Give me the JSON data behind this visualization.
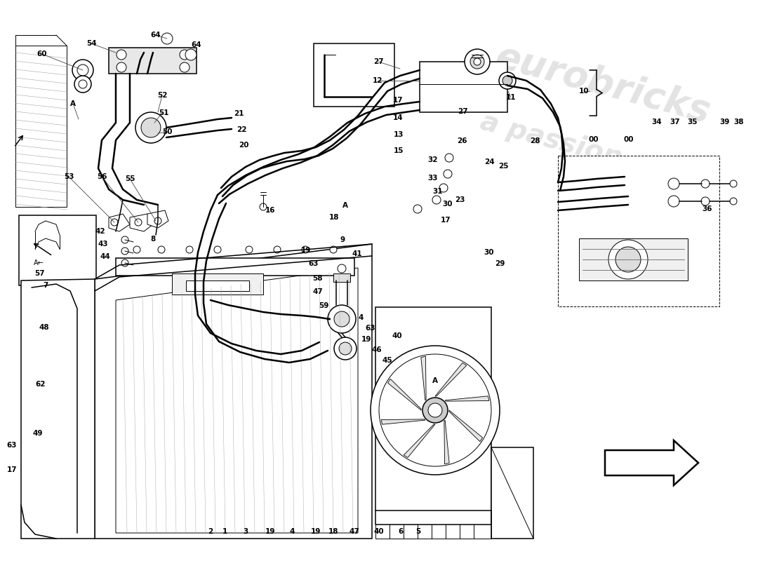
{
  "bg_color": "#ffffff",
  "line_color": "#000000",
  "lw_thin": 0.7,
  "lw_med": 1.1,
  "lw_thick": 1.8,
  "label_fontsize": 7.5,
  "watermark": {
    "text1": "eurob",
    "text2": "a pas",
    "text3": "sion",
    "color": "#d4c870",
    "alpha": 0.3
  },
  "figsize": [
    11.0,
    8.0
  ],
  "dpi": 100,
  "labels": [
    [
      60,
      77,
      "60"
    ],
    [
      130,
      62,
      "54"
    ],
    [
      222,
      50,
      "64"
    ],
    [
      280,
      64,
      "64"
    ],
    [
      104,
      148,
      "A"
    ],
    [
      231,
      136,
      "52"
    ],
    [
      233,
      161,
      "51"
    ],
    [
      238,
      188,
      "50"
    ],
    [
      98,
      252,
      "53"
    ],
    [
      145,
      252,
      "56"
    ],
    [
      185,
      255,
      "55"
    ],
    [
      143,
      330,
      "42"
    ],
    [
      147,
      348,
      "43"
    ],
    [
      150,
      366,
      "44"
    ],
    [
      218,
      341,
      "8"
    ],
    [
      65,
      407,
      "7"
    ],
    [
      63,
      467,
      "48"
    ],
    [
      58,
      548,
      "62"
    ],
    [
      54,
      618,
      "49"
    ],
    [
      340,
      162,
      "21"
    ],
    [
      344,
      185,
      "22"
    ],
    [
      347,
      207,
      "20"
    ],
    [
      385,
      300,
      "16"
    ],
    [
      436,
      357,
      "19"
    ],
    [
      447,
      376,
      "63"
    ],
    [
      452,
      397,
      "58"
    ],
    [
      453,
      416,
      "47"
    ],
    [
      461,
      436,
      "59"
    ],
    [
      476,
      310,
      "18"
    ],
    [
      492,
      293,
      "A"
    ],
    [
      488,
      342,
      "9"
    ],
    [
      509,
      362,
      "41"
    ],
    [
      514,
      453,
      "4"
    ],
    [
      528,
      468,
      "63"
    ],
    [
      522,
      484,
      "19"
    ],
    [
      537,
      499,
      "46"
    ],
    [
      552,
      514,
      "45"
    ],
    [
      566,
      479,
      "40"
    ],
    [
      539,
      88,
      "27"
    ],
    [
      538,
      115,
      "12"
    ],
    [
      567,
      143,
      "17"
    ],
    [
      567,
      168,
      "14"
    ],
    [
      568,
      192,
      "13"
    ],
    [
      568,
      215,
      "15"
    ],
    [
      617,
      228,
      "32"
    ],
    [
      617,
      254,
      "33"
    ],
    [
      624,
      273,
      "31"
    ],
    [
      638,
      291,
      "30"
    ],
    [
      658,
      201,
      "26"
    ],
    [
      659,
      159,
      "27"
    ],
    [
      655,
      285,
      "23"
    ],
    [
      635,
      314,
      "17"
    ],
    [
      697,
      231,
      "24"
    ],
    [
      717,
      237,
      "25"
    ],
    [
      728,
      139,
      "11"
    ],
    [
      832,
      130,
      "10"
    ],
    [
      762,
      201,
      "28"
    ],
    [
      846,
      199,
      "00"
    ],
    [
      896,
      199,
      "00"
    ],
    [
      936,
      174,
      "34"
    ],
    [
      962,
      174,
      "37"
    ],
    [
      987,
      174,
      "35"
    ],
    [
      1033,
      174,
      "39"
    ],
    [
      1053,
      174,
      "38"
    ],
    [
      1008,
      298,
      "36"
    ],
    [
      697,
      360,
      "30"
    ],
    [
      712,
      376,
      "29"
    ],
    [
      300,
      758,
      "2"
    ],
    [
      320,
      758,
      "1"
    ],
    [
      350,
      758,
      "3"
    ],
    [
      385,
      758,
      "19"
    ],
    [
      416,
      758,
      "4"
    ],
    [
      450,
      758,
      "19"
    ],
    [
      475,
      758,
      "18"
    ],
    [
      505,
      758,
      "47"
    ],
    [
      540,
      758,
      "40"
    ],
    [
      571,
      758,
      "6"
    ],
    [
      596,
      758,
      "5"
    ],
    [
      620,
      543,
      "A"
    ],
    [
      57,
      390,
      "57"
    ],
    [
      17,
      670,
      "17"
    ],
    [
      17,
      635,
      "63"
    ]
  ]
}
